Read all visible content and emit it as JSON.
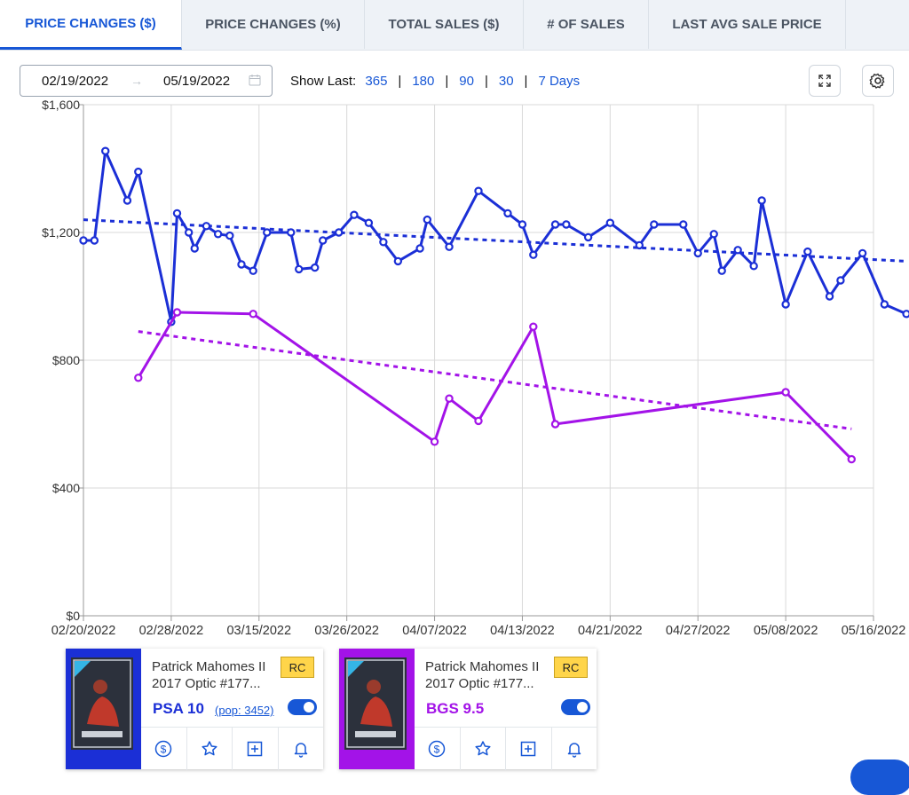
{
  "tabs": [
    {
      "label": "PRICE CHANGES ($)",
      "active": true
    },
    {
      "label": "PRICE CHANGES (%)"
    },
    {
      "label": "TOTAL SALES ($)"
    },
    {
      "label": "# OF SALES"
    },
    {
      "label": "LAST AVG SALE PRICE"
    }
  ],
  "toolbar": {
    "date_from": "02/19/2022",
    "date_to": "05/19/2022",
    "arrow": "→",
    "show_last_label": "Show Last:",
    "show_last_options": [
      "365",
      "180",
      "90",
      "30",
      "7 Days"
    ],
    "separator": "|",
    "icons": [
      "calendar-icon",
      "expand-icon",
      "gear-icon"
    ]
  },
  "chart_data": {
    "type": "line",
    "ylim": [
      0,
      1600
    ],
    "y_ticks": [
      {
        "value": 0,
        "label": "$0"
      },
      {
        "value": 400,
        "label": "$400"
      },
      {
        "value": 800,
        "label": "$800"
      },
      {
        "value": 1200,
        "label": "$1,200"
      },
      {
        "value": 1600,
        "label": "$1,600"
      }
    ],
    "x_ticks": [
      "02/20/2022",
      "02/28/2022",
      "03/15/2022",
      "03/26/2022",
      "04/07/2022",
      "04/13/2022",
      "04/21/2022",
      "04/27/2022",
      "05/08/2022",
      "05/16/2022"
    ],
    "x_tick_dates": [
      "2022-02-20",
      "2022-02-28",
      "2022-03-15",
      "2022-03-26",
      "2022-04-07",
      "2022-04-13",
      "2022-04-21",
      "2022-04-27",
      "2022-05-08",
      "2022-05-16"
    ],
    "grid": true,
    "series": [
      {
        "color": "#1b2fd6",
        "data": [
          [
            "2022-02-20",
            1175
          ],
          [
            "2022-02-21",
            1175
          ],
          [
            "2022-02-22",
            1455
          ],
          [
            "2022-02-24",
            1300
          ],
          [
            "2022-02-25",
            1390
          ],
          [
            "2022-02-28",
            920
          ],
          [
            "2022-03-01",
            1260
          ],
          [
            "2022-03-03",
            1200
          ],
          [
            "2022-03-04",
            1150
          ],
          [
            "2022-03-06",
            1220
          ],
          [
            "2022-03-08",
            1195
          ],
          [
            "2022-03-10",
            1190
          ],
          [
            "2022-03-12",
            1100
          ],
          [
            "2022-03-14",
            1080
          ],
          [
            "2022-03-16",
            1200
          ],
          [
            "2022-03-19",
            1200
          ],
          [
            "2022-03-20",
            1085
          ],
          [
            "2022-03-22",
            1090
          ],
          [
            "2022-03-23",
            1175
          ],
          [
            "2022-03-25",
            1200
          ],
          [
            "2022-03-27",
            1255
          ],
          [
            "2022-03-29",
            1230
          ],
          [
            "2022-03-31",
            1170
          ],
          [
            "2022-04-02",
            1110
          ],
          [
            "2022-04-05",
            1150
          ],
          [
            "2022-04-06",
            1240
          ],
          [
            "2022-04-08",
            1155
          ],
          [
            "2022-04-10",
            1330
          ],
          [
            "2022-04-12",
            1260
          ],
          [
            "2022-04-13",
            1225
          ],
          [
            "2022-04-14",
            1130
          ],
          [
            "2022-04-16",
            1225
          ],
          [
            "2022-04-17",
            1225
          ],
          [
            "2022-04-19",
            1185
          ],
          [
            "2022-04-21",
            1230
          ],
          [
            "2022-04-23",
            1160
          ],
          [
            "2022-04-24",
            1225
          ],
          [
            "2022-04-26",
            1225
          ],
          [
            "2022-04-27",
            1135
          ],
          [
            "2022-04-29",
            1195
          ],
          [
            "2022-04-30",
            1080
          ],
          [
            "2022-05-02",
            1145
          ],
          [
            "2022-05-04",
            1095
          ],
          [
            "2022-05-05",
            1300
          ],
          [
            "2022-05-08",
            975
          ],
          [
            "2022-05-10",
            1140
          ],
          [
            "2022-05-12",
            1000
          ],
          [
            "2022-05-13",
            1050
          ],
          [
            "2022-05-15",
            1135
          ],
          [
            "2022-05-17",
            975
          ],
          [
            "2022-05-19",
            945
          ]
        ],
        "trend": [
          [
            "2022-02-20",
            1240
          ],
          [
            "2022-05-19",
            1110
          ]
        ]
      },
      {
        "color": "#a313e8",
        "data": [
          [
            "2022-02-25",
            745
          ],
          [
            "2022-03-01",
            950
          ],
          [
            "2022-03-14",
            945
          ],
          [
            "2022-04-07",
            545
          ],
          [
            "2022-04-08",
            680
          ],
          [
            "2022-04-10",
            610
          ],
          [
            "2022-04-14",
            905
          ],
          [
            "2022-04-16",
            600
          ],
          [
            "2022-05-08",
            700
          ],
          [
            "2022-05-14",
            490
          ]
        ],
        "trend": [
          [
            "2022-02-25",
            890
          ],
          [
            "2022-05-14",
            585
          ]
        ]
      }
    ]
  },
  "cards": [
    {
      "accent": "#1b2fd6",
      "title_line1": "Patrick Mahomes II",
      "title_line2": "2017 Optic #177...",
      "badge": "RC",
      "grade": "PSA 10",
      "pop": "(pop: 3452)",
      "toggle_on": true
    },
    {
      "accent": "#a313e8",
      "title_line1": "Patrick Mahomes II",
      "title_line2": "2017 Optic #177...",
      "badge": "RC",
      "grade": "BGS 9.5",
      "pop": "",
      "toggle_on": true
    }
  ],
  "card_actions": [
    "dollar-icon",
    "star-icon",
    "plus-square-icon",
    "bell-icon"
  ]
}
